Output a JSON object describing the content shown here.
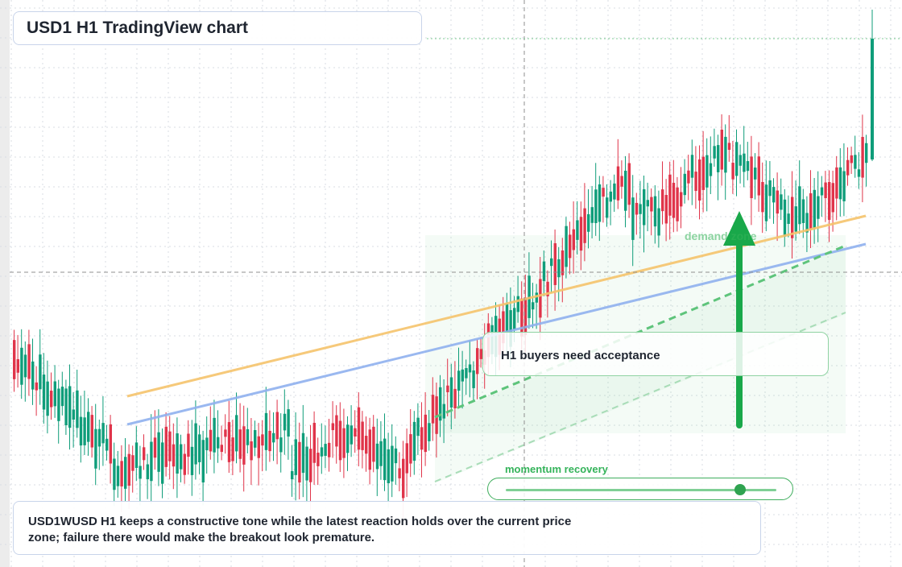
{
  "title": "USD1 H1 TradingView chart",
  "callouts": {
    "acceptance": "H1 buyers need acceptance",
    "demand_zone": "demand zone",
    "momentum": "momentum recovery"
  },
  "momentum_meter": {
    "level": 0.86
  },
  "note": "USD1WUSD H1 keeps a constructive tone while the latest reaction holds over the current price zone; failure there would make the breakout look premature.",
  "colors": {
    "bull": "#0f9d7a",
    "bear": "#e0344a",
    "ma_fast": "#f5c36b",
    "ma_slow": "#8fb0ee",
    "accent": "#19a84a",
    "grid": "#d8dde3"
  },
  "chart_data": {
    "type": "candlestick",
    "series": [
      {
        "name": "USD1WUSD",
        "timeframe": "H1"
      }
    ]
  }
}
